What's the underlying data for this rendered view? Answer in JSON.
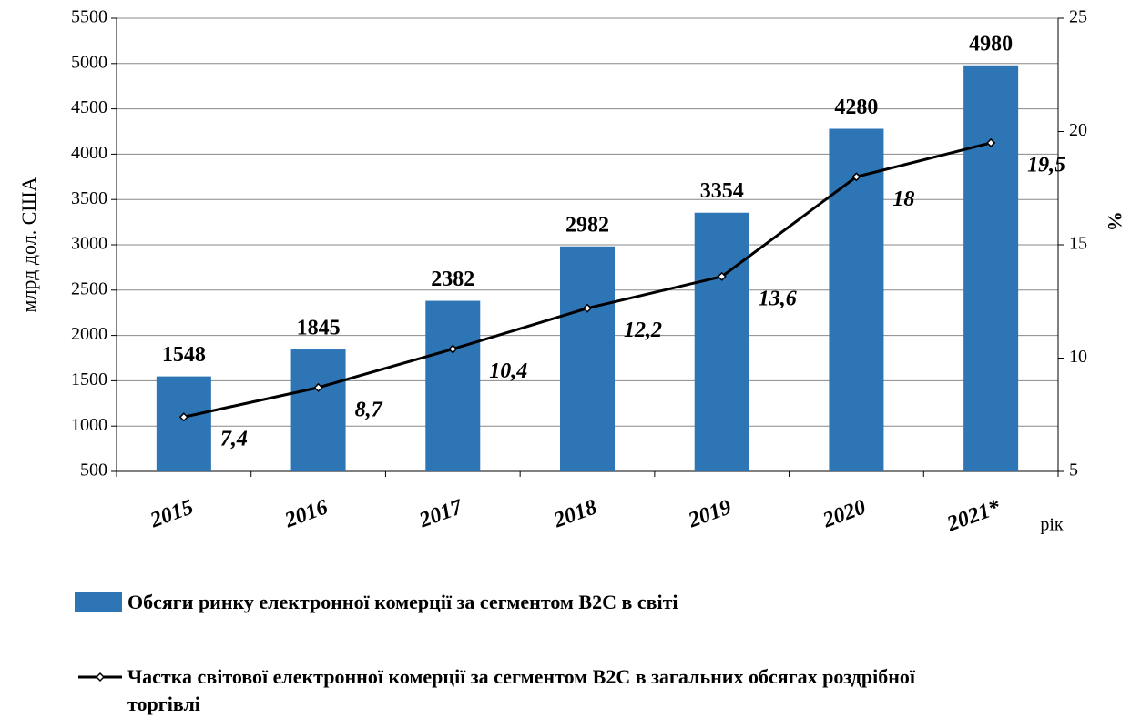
{
  "chart_data": {
    "type": "bar",
    "categories": [
      "2015",
      "2016",
      "2017",
      "2018",
      "2019",
      "2020",
      "2021*"
    ],
    "series": [
      {
        "name": "Обсяги ринку електронної комерції за сегментом B2C  в світі",
        "type": "bar",
        "color": "#2e75b6",
        "values": [
          1548,
          1845,
          2382,
          2982,
          3354,
          4280,
          4980
        ]
      },
      {
        "name": "Частка світової електронної комерції за сегментом B2C  в загальних обсягах роздрібної торгівлі",
        "type": "line",
        "color": "#000000",
        "axis": "y2",
        "values": [
          7.4,
          8.7,
          10.4,
          12.2,
          13.6,
          18,
          19.5
        ],
        "value_labels": [
          "7,4",
          "8,7",
          "10,4",
          "12,2",
          "13,6",
          "18",
          "19,5"
        ]
      }
    ],
    "ylabel": "млрд дол. США",
    "y2label": "%",
    "xlabel": "рік",
    "ylim": [
      500,
      5500
    ],
    "yticks": [
      500,
      1000,
      1500,
      2000,
      2500,
      3000,
      3500,
      4000,
      4500,
      5000,
      5500
    ],
    "y2lim": [
      5,
      25
    ],
    "y2ticks": [
      5,
      10,
      15,
      20,
      25
    ],
    "grid": true
  }
}
